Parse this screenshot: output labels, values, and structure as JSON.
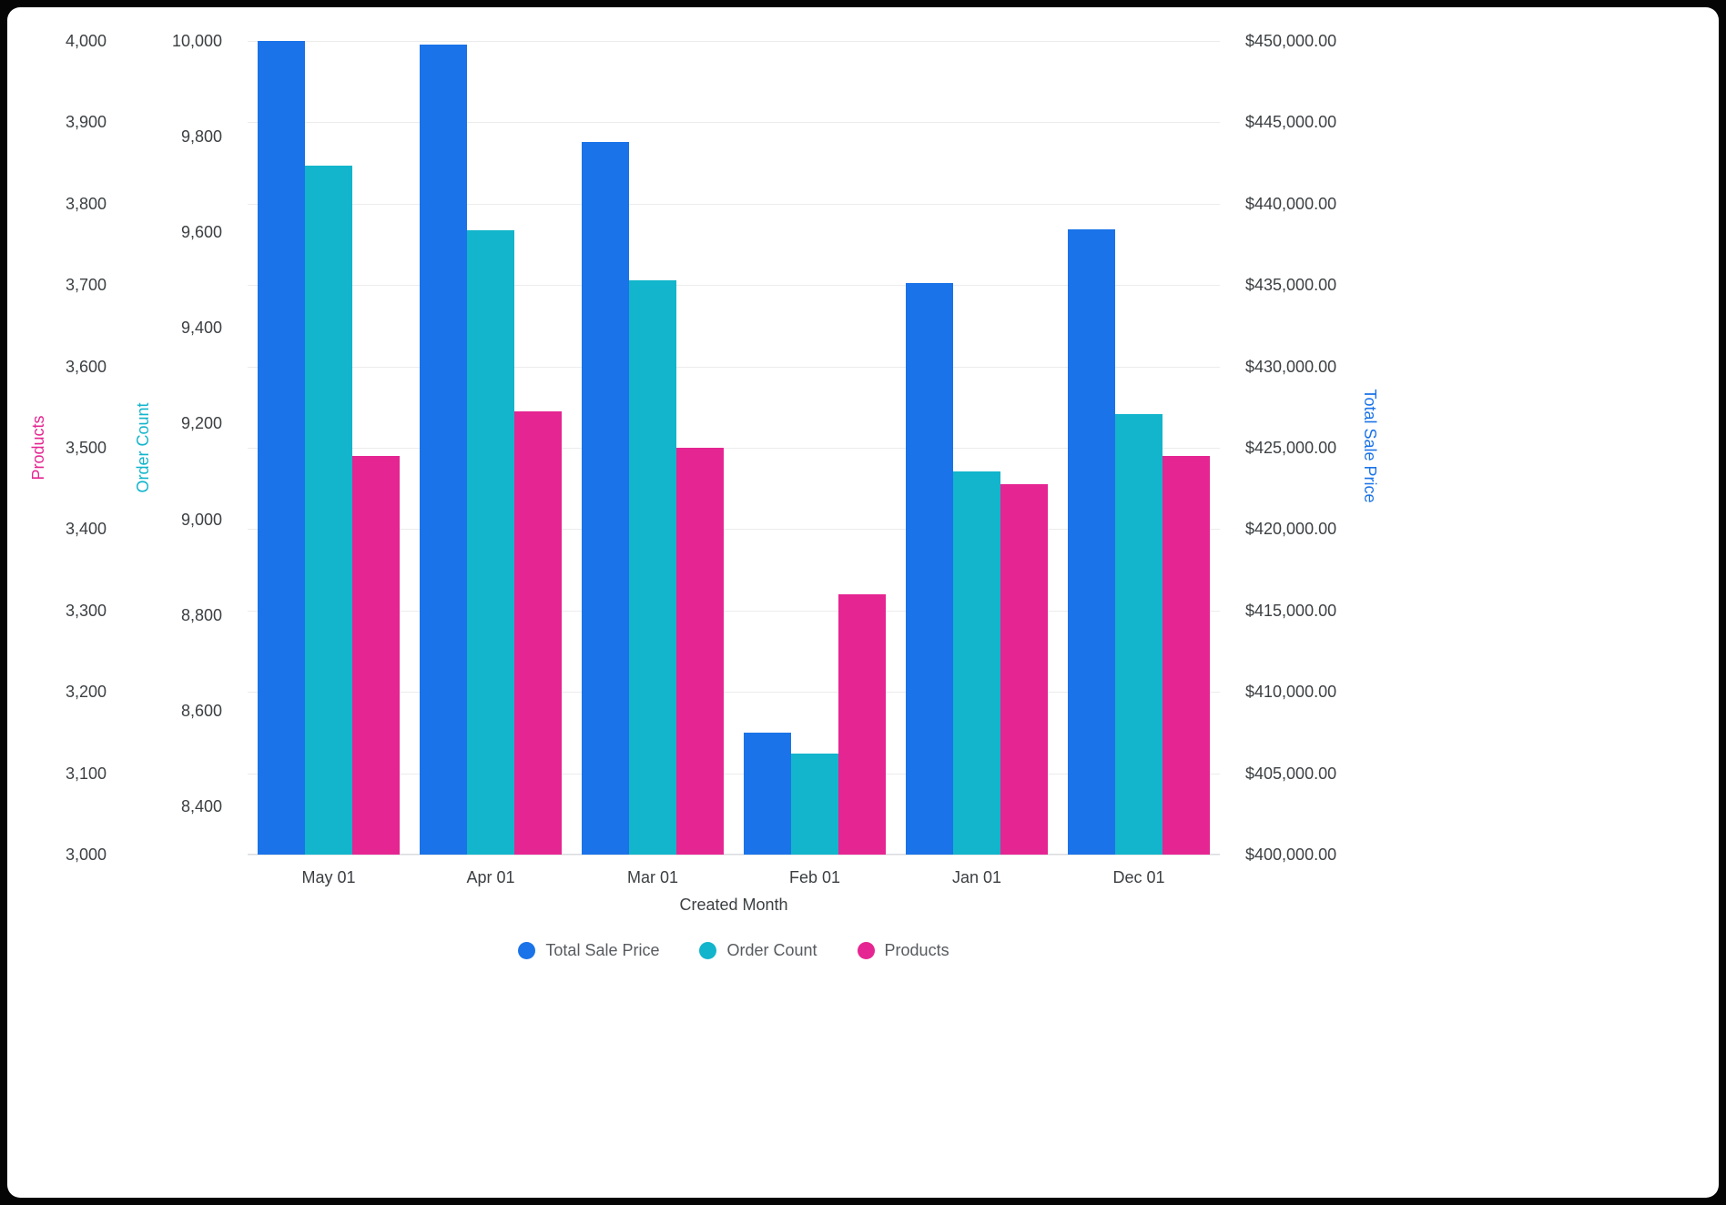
{
  "chart_data": {
    "type": "bar",
    "title": "",
    "xlabel": "Created Month",
    "legend_position": "bottom",
    "grid": true,
    "categories": [
      "May 01",
      "Apr 01",
      "Mar 01",
      "Feb 01",
      "Jan 01",
      "Dec 01"
    ],
    "series": [
      {
        "name": "Total Sale Price",
        "axis": "price",
        "color": "#1A73E8",
        "values": [
          450000,
          449800,
          443800,
          407500,
          435100,
          438400
        ]
      },
      {
        "name": "Order Count",
        "axis": "orders",
        "color": "#12B5CB",
        "values": [
          9740,
          9605,
          9500,
          8510,
          9100,
          9220
        ]
      },
      {
        "name": "Products",
        "axis": "products",
        "color": "#E52592",
        "values": [
          3490,
          3545,
          3500,
          3320,
          3455,
          3490
        ]
      }
    ],
    "axes": {
      "products": {
        "title": "Products",
        "color": "#E52592",
        "side": "left-outer",
        "top": 4000,
        "bottom": 3000,
        "ticks": [
          {
            "v": 3000,
            "label": "3,000"
          },
          {
            "v": 3100,
            "label": "3,100"
          },
          {
            "v": 3200,
            "label": "3,200"
          },
          {
            "v": 3300,
            "label": "3,300"
          },
          {
            "v": 3400,
            "label": "3,400"
          },
          {
            "v": 3500,
            "label": "3,500"
          },
          {
            "v": 3600,
            "label": "3,600"
          },
          {
            "v": 3700,
            "label": "3,700"
          },
          {
            "v": 3800,
            "label": "3,800"
          },
          {
            "v": 3900,
            "label": "3,900"
          },
          {
            "v": 4000,
            "label": "4,000"
          }
        ]
      },
      "orders": {
        "title": "Order Count",
        "color": "#12B5CB",
        "side": "left-inner",
        "top": 10000,
        "bottom": 8299,
        "ticks": [
          {
            "v": 8400,
            "label": "8,400"
          },
          {
            "v": 8600,
            "label": "8,600"
          },
          {
            "v": 8800,
            "label": "8,800"
          },
          {
            "v": 9000,
            "label": "9,000"
          },
          {
            "v": 9200,
            "label": "9,200"
          },
          {
            "v": 9400,
            "label": "9,400"
          },
          {
            "v": 9600,
            "label": "9,600"
          },
          {
            "v": 9800,
            "label": "9,800"
          },
          {
            "v": 10000,
            "label": "10,000"
          }
        ]
      },
      "price": {
        "title": "Total Sale Price",
        "color": "#1A73E8",
        "side": "right",
        "top": 450000,
        "bottom": 400000,
        "ticks": [
          {
            "v": 400000,
            "label": "$400,000.00"
          },
          {
            "v": 405000,
            "label": "$405,000.00"
          },
          {
            "v": 410000,
            "label": "$410,000.00"
          },
          {
            "v": 415000,
            "label": "$415,000.00"
          },
          {
            "v": 420000,
            "label": "$420,000.00"
          },
          {
            "v": 425000,
            "label": "$425,000.00"
          },
          {
            "v": 430000,
            "label": "$430,000.00"
          },
          {
            "v": 435000,
            "label": "$435,000.00"
          },
          {
            "v": 440000,
            "label": "$440,000.00"
          },
          {
            "v": 445000,
            "label": "$445,000.00"
          },
          {
            "v": 450000,
            "label": "$450,000.00"
          }
        ]
      }
    }
  }
}
